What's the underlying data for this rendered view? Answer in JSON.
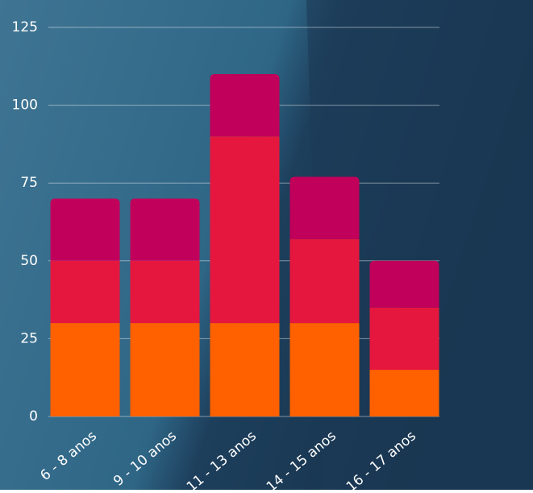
{
  "chart_data": {
    "type": "stacked-bar",
    "categories": [
      "6 - 8 anos",
      "9 - 10 anos",
      "11 - 13 anos",
      "14 - 15 anos",
      "16 - 17 anos"
    ],
    "series": [
      {
        "color": "#ff6000",
        "values": [
          30,
          30,
          30,
          30,
          15
        ]
      },
      {
        "color": "#e5173f",
        "values": [
          20,
          20,
          60,
          27,
          20
        ]
      },
      {
        "color": "#c0005a",
        "values": [
          20,
          20,
          20,
          20,
          15
        ]
      }
    ],
    "ylim": [
      0,
      125
    ],
    "yticks": [
      0,
      25,
      50,
      75,
      100,
      125
    ],
    "grid": true
  }
}
